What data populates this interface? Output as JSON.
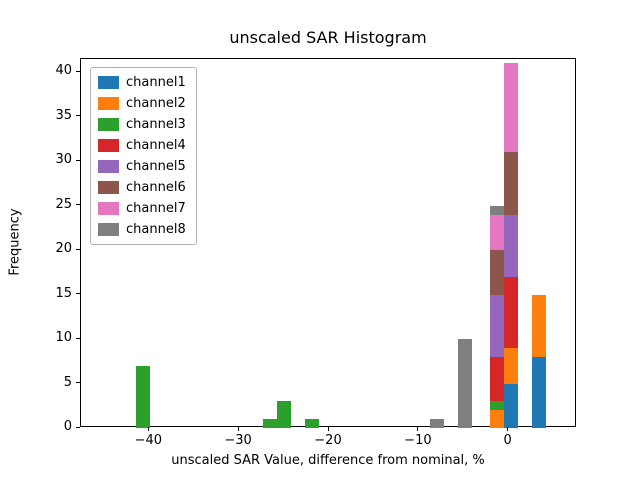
{
  "chart_data": {
    "type": "bar",
    "subtype": "stacked_histogram",
    "title": "unscaled SAR Histogram",
    "xlabel": "unscaled SAR Value, difference from nominal, %",
    "ylabel": "Frequency",
    "xlim": [
      -47.6,
      7.6
    ],
    "ylim": [
      0,
      41.5
    ],
    "grid": false,
    "legend_position": "upper-left",
    "xticks": [
      {
        "value": -40,
        "label": "−40"
      },
      {
        "value": -30,
        "label": "−30"
      },
      {
        "value": -20,
        "label": "−20"
      },
      {
        "value": -10,
        "label": "−10"
      },
      {
        "value": 0,
        "label": "0"
      }
    ],
    "yticks": [
      {
        "value": 0,
        "label": "0"
      },
      {
        "value": 5,
        "label": "5"
      },
      {
        "value": 10,
        "label": "10"
      },
      {
        "value": 15,
        "label": "15"
      },
      {
        "value": 20,
        "label": "20"
      },
      {
        "value": 25,
        "label": "25"
      },
      {
        "value": 30,
        "label": "30"
      },
      {
        "value": 35,
        "label": "35"
      },
      {
        "value": 40,
        "label": "40"
      }
    ],
    "series": [
      {
        "name": "channel1",
        "color": "#1f77b4"
      },
      {
        "name": "channel2",
        "color": "#ff7f0e"
      },
      {
        "name": "channel3",
        "color": "#2ca02c"
      },
      {
        "name": "channel4",
        "color": "#d62728"
      },
      {
        "name": "channel5",
        "color": "#9467bd"
      },
      {
        "name": "channel6",
        "color": "#8c564b"
      },
      {
        "name": "channel7",
        "color": "#e377c2"
      },
      {
        "name": "channel8",
        "color": "#7f7f7f"
      }
    ],
    "bin_width": 1.55,
    "bars": [
      {
        "x_left": -41.5,
        "segments": {
          "channel3": 7
        }
      },
      {
        "x_left": -27.35,
        "segments": {
          "channel3": 1
        }
      },
      {
        "x_left": -25.8,
        "segments": {
          "channel3": 3
        }
      },
      {
        "x_left": -22.7,
        "segments": {
          "channel3": 1
        }
      },
      {
        "x_left": -8.75,
        "segments": {
          "channel8": 1
        }
      },
      {
        "x_left": -5.65,
        "segments": {
          "channel8": 10
        }
      },
      {
        "x_left": -2.05,
        "segments": {
          "channel2": 2,
          "channel3": 1,
          "channel4": 5,
          "channel5": 7,
          "channel6": 5,
          "channel7": 4,
          "channel8": 1
        }
      },
      {
        "x_left": -0.5,
        "segments": {
          "channel1": 5,
          "channel2": 4,
          "channel4": 8,
          "channel5": 7,
          "channel6": 7,
          "channel7": 10
        }
      },
      {
        "x_left": 2.6,
        "segments": {
          "channel1": 8,
          "channel2": 7
        }
      }
    ]
  }
}
